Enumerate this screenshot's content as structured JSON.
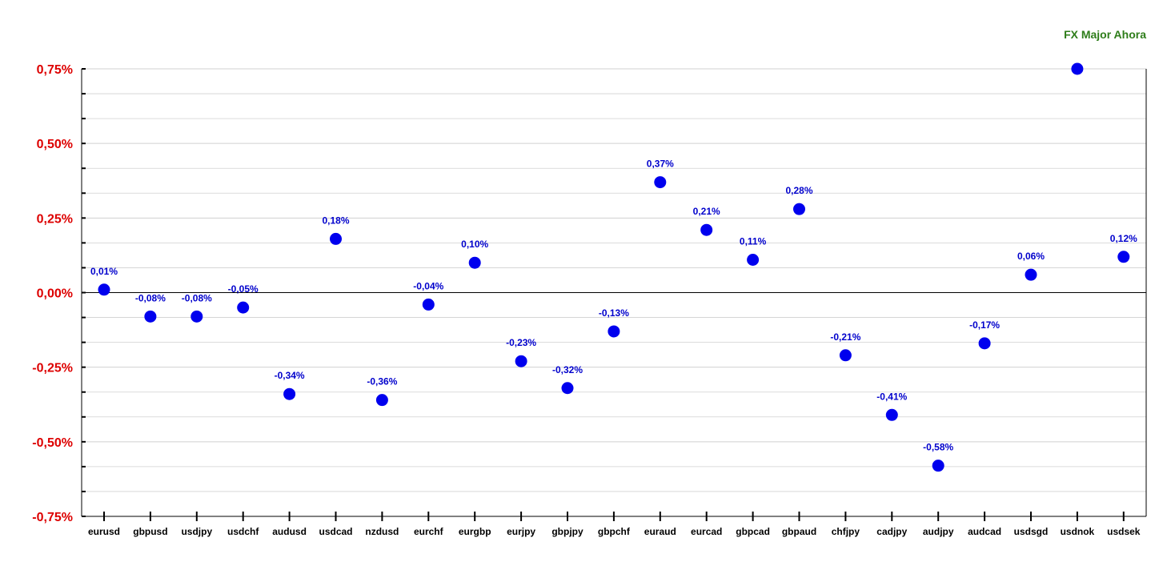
{
  "chart_data": {
    "type": "scatter",
    "title": "FX Major Ahora",
    "xlabel": "",
    "ylabel": "",
    "ylim": [
      -0.75,
      0.75
    ],
    "y_ticks": [
      "0,75%",
      "0,50%",
      "0,25%",
      "0,00%",
      "-0,25%",
      "-0,50%",
      "-0,75%"
    ],
    "y_tick_values": [
      0.75,
      0.5,
      0.25,
      0.0,
      -0.25,
      -0.5,
      -0.75
    ],
    "grid": true,
    "legend": "none",
    "categories": [
      "eurusd",
      "gbpusd",
      "usdjpy",
      "usdchf",
      "audusd",
      "usdcad",
      "nzdusd",
      "eurchf",
      "eurgbp",
      "eurjpy",
      "gbpjpy",
      "gbpchf",
      "euraud",
      "eurcad",
      "gbpcad",
      "gbpaud",
      "chfjpy",
      "cadjpy",
      "audjpy",
      "audcad",
      "usdsgd",
      "usdnok",
      "usdsek"
    ],
    "values": [
      0.01,
      -0.08,
      -0.08,
      -0.05,
      -0.34,
      0.18,
      -0.36,
      -0.04,
      0.1,
      -0.23,
      -0.32,
      -0.13,
      0.37,
      0.21,
      0.11,
      0.28,
      -0.21,
      -0.41,
      -0.58,
      -0.17,
      0.06,
      0.75,
      0.12
    ],
    "data_labels": [
      "0,01%",
      "-0,08%",
      "-0,08%",
      "-0,05%",
      "-0,34%",
      "0,18%",
      "-0,36%",
      "-0,04%",
      "0,10%",
      "-0,23%",
      "-0,32%",
      "-0,13%",
      "0,37%",
      "0,21%",
      "0,11%",
      "0,28%",
      "-0,21%",
      "-0,41%",
      "-0,58%",
      "-0,17%",
      "0,06%",
      "",
      "0,12%"
    ],
    "colors": {
      "marker": "#0000ee",
      "data_label": "#0000cc",
      "y_tick_label": "#dd0000",
      "title": "#2e7d1a",
      "grid": "#d0d0d0",
      "axis": "#000000"
    }
  }
}
